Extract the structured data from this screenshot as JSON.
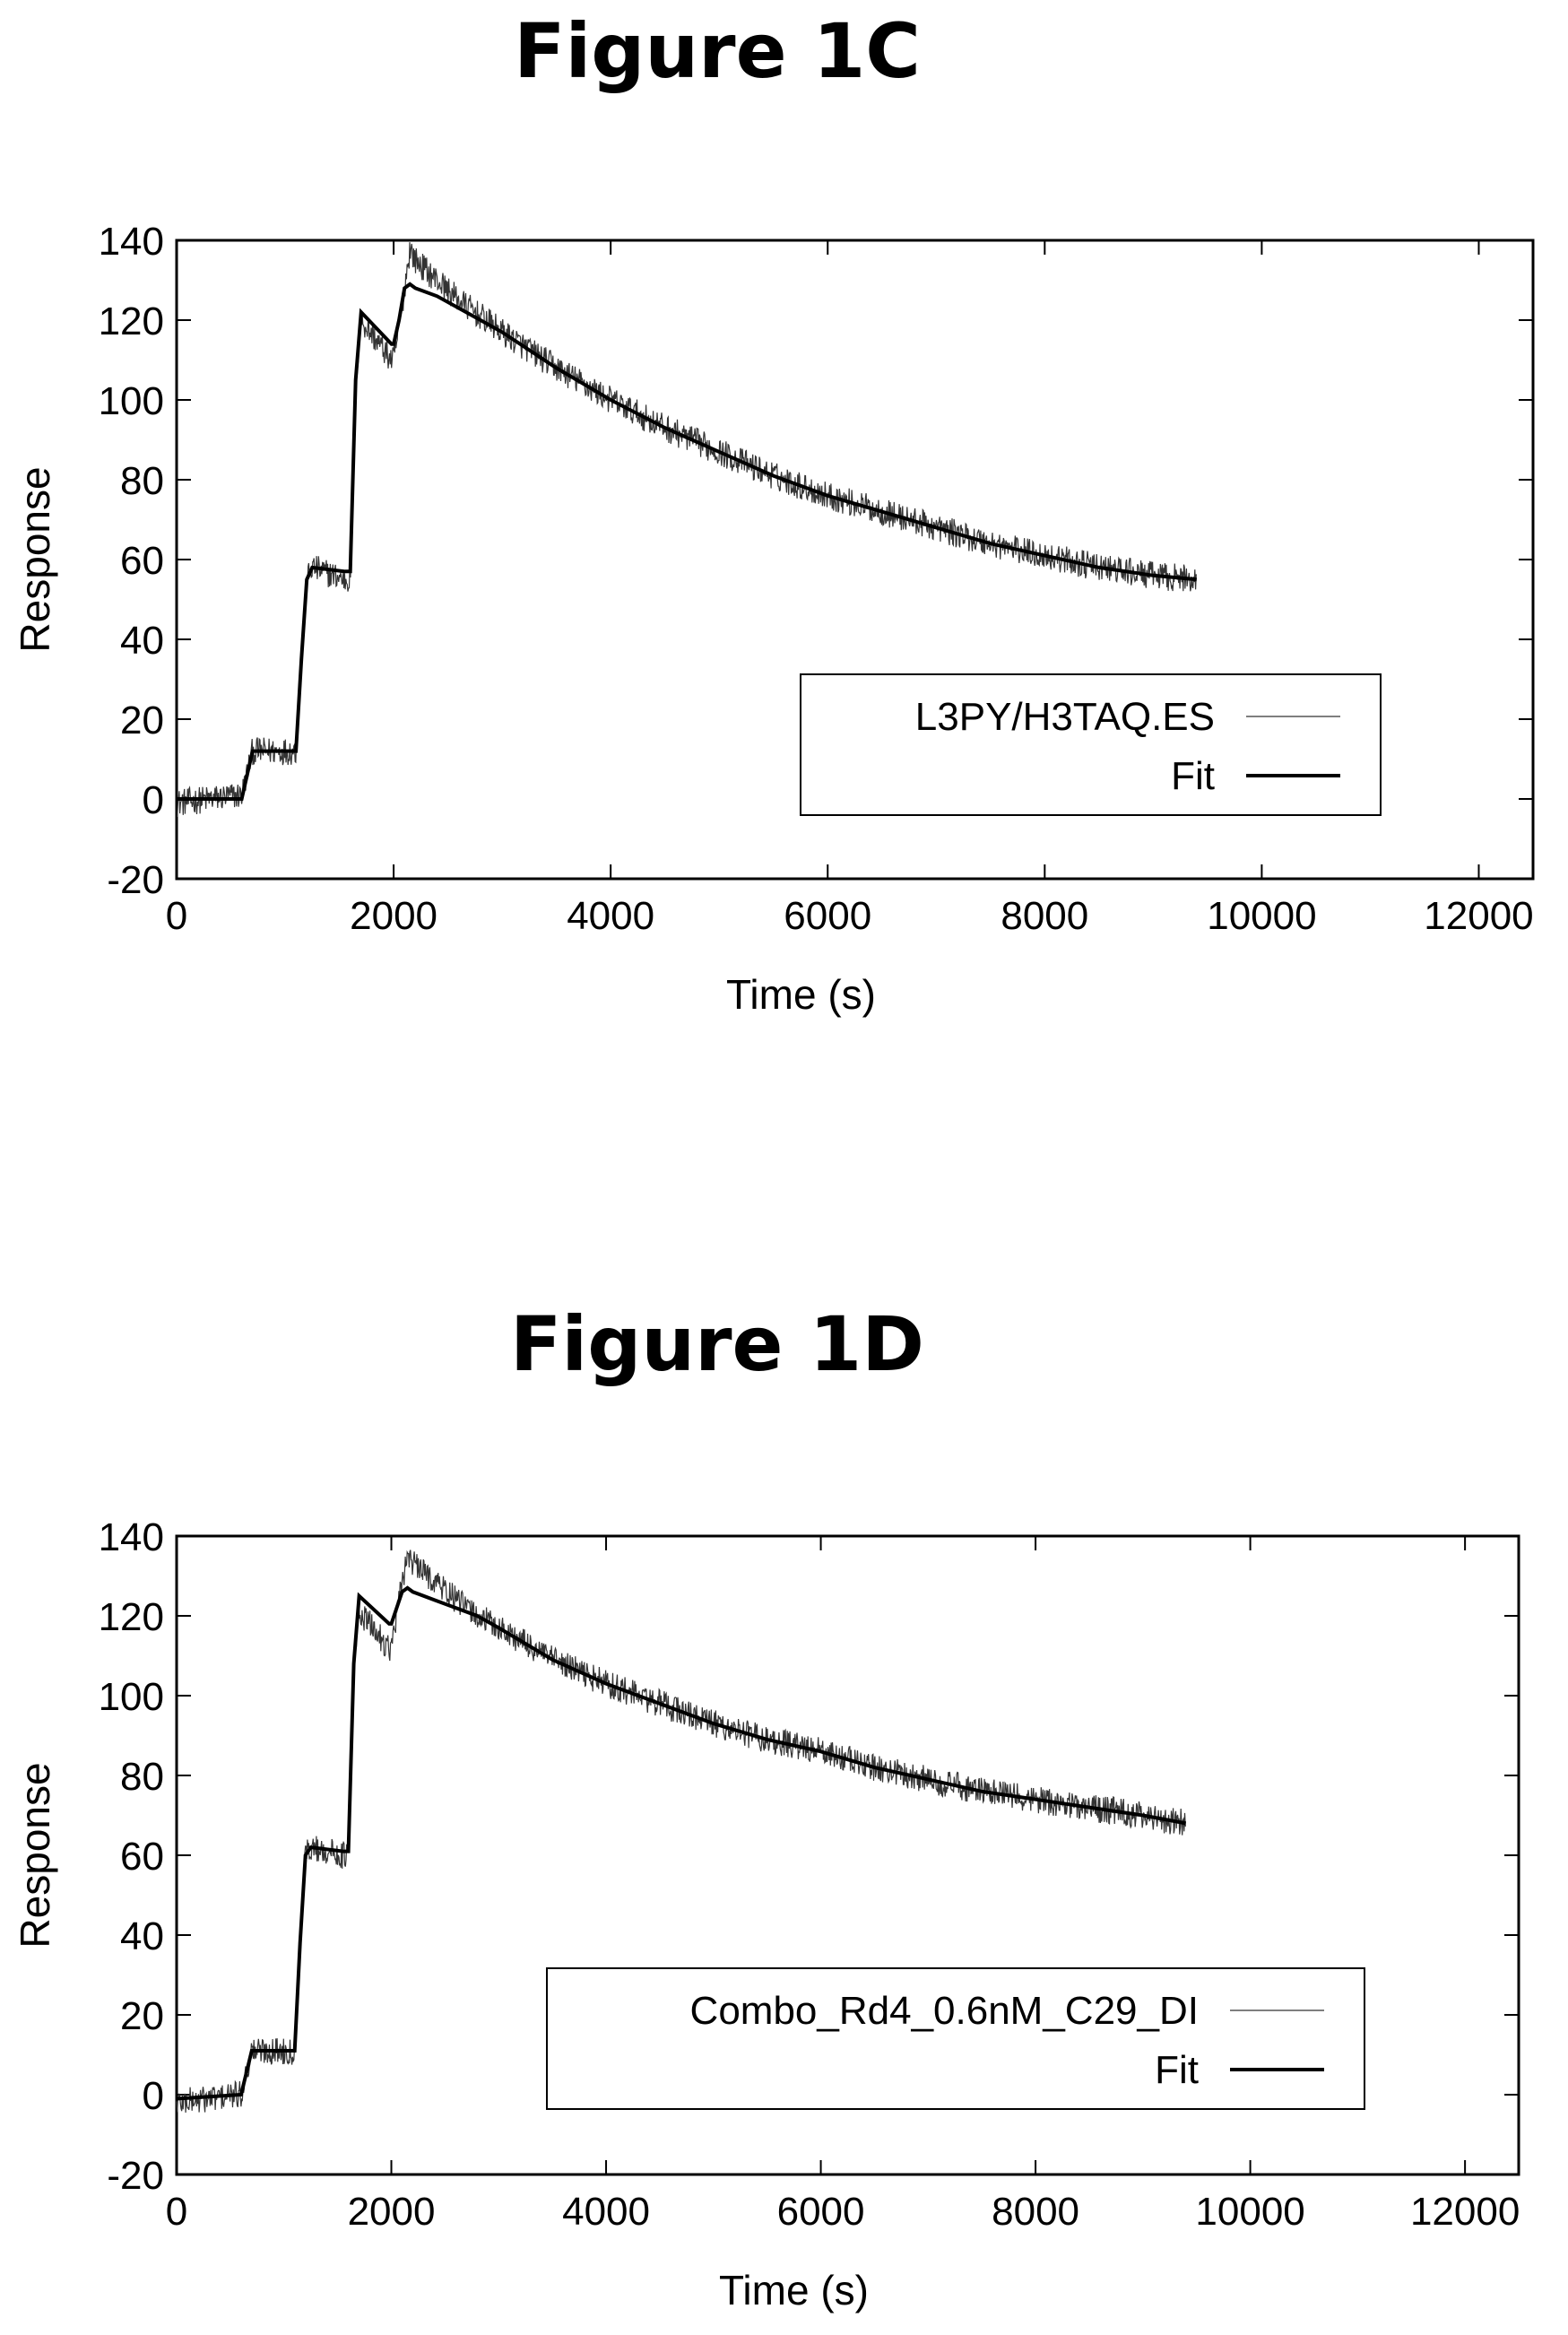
{
  "figures": [
    {
      "title": "Figure 1C",
      "chart_data": {
        "type": "line",
        "xlabel": "Time (s)",
        "ylabel": "Response",
        "xlim": [
          0,
          12500
        ],
        "ylim": [
          -20,
          140
        ],
        "xticks": [
          0,
          2000,
          4000,
          6000,
          8000,
          10000,
          12000
        ],
        "yticks": [
          -20,
          0,
          20,
          40,
          60,
          80,
          100,
          120,
          140
        ],
        "legend_position": "lower-right",
        "series": [
          {
            "name": "L3PY/H3TAQ.ES",
            "style": "thin noisy",
            "x": [
              0,
              600,
              700,
              1100,
              1150,
              1200,
              1250,
              1550,
              1600,
              1650,
              1700,
              1980,
              2000,
              2050,
              2100,
              2150,
              2200,
              2400,
              2600,
              2800,
              3000,
              3500,
              4000,
              4500,
              5000,
              5500,
              6000,
              6500,
              7000,
              7500,
              8000,
              8500,
              9000,
              9400
            ],
            "y": [
              -1,
              1,
              12,
              12,
              35,
              55,
              58,
              55,
              55,
              105,
              120,
              110,
              110,
              118,
              128,
              138,
              135,
              130,
              125,
              121,
              117,
              108,
              100,
              93,
              87,
              81,
              76,
              72,
              68,
              64,
              61,
              58,
              56,
              55
            ]
          },
          {
            "name": "Fit",
            "style": "thick",
            "x": [
              0,
              600,
              700,
              1100,
              1150,
              1200,
              1250,
              1550,
              1600,
              1650,
              1700,
              1980,
              2000,
              2050,
              2100,
              2150,
              2200,
              2400,
              2600,
              2800,
              3000,
              3500,
              4000,
              4500,
              5000,
              5500,
              6000,
              6500,
              7000,
              7500,
              8000,
              8500,
              9000,
              9400
            ],
            "y": [
              0,
              0,
              12,
              12,
              35,
              55,
              58,
              57,
              57,
              105,
              122,
              114,
              114,
              120,
              128,
              129,
              128,
              126,
              123,
              120,
              117,
              108,
              100,
              93,
              87,
              81,
              76,
              72,
              68,
              64,
              61,
              58,
              56,
              55
            ]
          }
        ]
      }
    },
    {
      "title": "Figure 1D",
      "chart_data": {
        "type": "line",
        "xlabel": "Time (s)",
        "ylabel": "Response",
        "xlim": [
          0,
          12500
        ],
        "ylim": [
          -20,
          140
        ],
        "xticks": [
          0,
          2000,
          4000,
          6000,
          8000,
          10000,
          12000
        ],
        "yticks": [
          -20,
          0,
          20,
          40,
          60,
          80,
          100,
          120,
          140
        ],
        "legend_position": "lower-right",
        "series": [
          {
            "name": "Combo_Rd4_0.6nM_C29_DI",
            "style": "thin noisy",
            "x": [
              0,
              600,
              700,
              1100,
              1150,
              1200,
              1250,
              1550,
              1600,
              1650,
              1700,
              1980,
              2000,
              2050,
              2100,
              2150,
              2200,
              2400,
              2600,
              2800,
              3000,
              3500,
              4000,
              4500,
              5000,
              5500,
              6000,
              6500,
              7000,
              7500,
              8000,
              8500,
              9000,
              9400
            ],
            "y": [
              -2,
              0,
              11,
              11,
              38,
              60,
              62,
              60,
              60,
              108,
              121,
              112,
              112,
              120,
              128,
              136,
              133,
              129,
              124,
              120,
              117,
              109,
              103,
              98,
              93,
              89,
              86,
              82,
              79,
              76,
              74,
              72,
              70,
              68
            ]
          },
          {
            "name": "Fit",
            "style": "thick",
            "x": [
              0,
              600,
              700,
              1100,
              1150,
              1200,
              1250,
              1550,
              1600,
              1650,
              1700,
              1980,
              2000,
              2050,
              2100,
              2150,
              2200,
              2400,
              2600,
              2800,
              3000,
              3500,
              4000,
              4500,
              5000,
              5500,
              6000,
              6500,
              7000,
              7500,
              8000,
              8500,
              9000,
              9400
            ],
            "y": [
              -1,
              0,
              11,
              11,
              38,
              60,
              62,
              61,
              61,
              108,
              125,
              118,
              118,
              122,
              126,
              127,
              126,
              124,
              122,
              120,
              117,
              109,
              103,
              98,
              93,
              89,
              86,
              82,
              79,
              76,
              74,
              72,
              70,
              68
            ]
          }
        ]
      }
    }
  ]
}
